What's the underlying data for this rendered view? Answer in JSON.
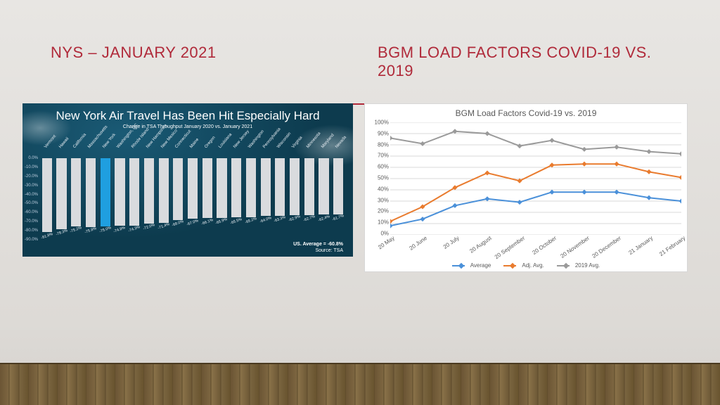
{
  "slide": {
    "title_left": "NYS – JANUARY 2021",
    "title_right": "BGM LOAD FACTORS COVID-19 VS. 2019",
    "title_color": "#b02a3a",
    "accent_color": "#b02a3a",
    "background_top": "#e8e6e3",
    "background_bottom": "#d5d2ce"
  },
  "left_chart": {
    "type": "bar",
    "title": "New York Air Travel Has Been Hit Especially Hard",
    "subtitle": "Change in TSA Throughput January 2020 vs. January 2021",
    "background_color": "#0d3b4e",
    "title_fontsize": 17,
    "y_min": -90,
    "y_max": 0,
    "y_step": 10,
    "y_format": "{v}.0%",
    "bar_color": "#d9dbde",
    "highlight_color": "#1f9fe0",
    "highlight_index": 4,
    "categories": [
      "Vermont",
      "Hawaii",
      "California",
      "Massachusetts",
      "New York",
      "Washington, DC",
      "Rhode Island",
      "New Hampshire",
      "New Mexico",
      "Connecticut",
      "Maine",
      "Oregon",
      "Louisiana",
      "New Jersey",
      "Washington",
      "Pennsylvania",
      "Wisconsin",
      "Virginia",
      "Minnesota",
      "Maryland",
      "Nevada"
    ],
    "values": [
      -81.8,
      -78.3,
      -75.2,
      -75.8,
      -75.0,
      -74.8,
      -74.3,
      -72.0,
      -71.4,
      -68.0,
      -67.0,
      -66.1,
      -65.9,
      -65.5,
      -65.2,
      -64.0,
      -63.3,
      -62.9,
      -62.7,
      -62.4,
      -61.7
    ],
    "footer_avg": "US. Average = -60.8%",
    "footer_source": "Source: TSA"
  },
  "right_chart": {
    "type": "line",
    "title": "BGM Load Factors Covid-19 vs. 2019",
    "background_color": "#ffffff",
    "grid_color": "#d9d9d9",
    "text_color": "#595959",
    "title_fontsize": 12,
    "y_min": 0,
    "y_max": 100,
    "y_step": 10,
    "y_format": "{v}%",
    "categories": [
      "20 May",
      "20 June",
      "20 July",
      "20 August",
      "20 September",
      "20 October",
      "20 November",
      "20 December",
      "21 January",
      "21 February"
    ],
    "series": [
      {
        "name": "Average",
        "color": "#4a90d9",
        "marker": "diamond",
        "values": [
          8,
          14,
          26,
          32,
          29,
          38,
          38,
          38,
          33,
          30
        ]
      },
      {
        "name": "Adj. Avg.",
        "color": "#e97b2e",
        "marker": "diamond",
        "values": [
          12,
          25,
          42,
          55,
          48,
          62,
          63,
          63,
          56,
          51
        ]
      },
      {
        "name": "2019 Avg.",
        "color": "#9a9a9a",
        "marker": "diamond",
        "values": [
          86,
          81,
          92,
          90,
          79,
          84,
          76,
          78,
          74,
          72
        ]
      }
    ],
    "line_width": 2,
    "marker_size": 5
  }
}
